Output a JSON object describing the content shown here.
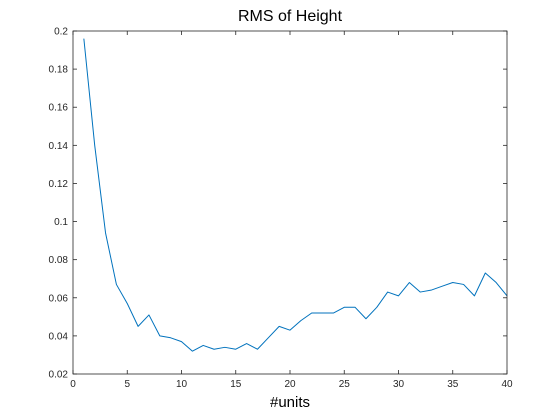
{
  "chart_data": {
    "type": "line",
    "title": "RMS of Height",
    "xlabel": "#units",
    "ylabel": "",
    "xlim": [
      0,
      40
    ],
    "ylim": [
      0.02,
      0.2
    ],
    "xticks": [
      0,
      5,
      10,
      15,
      20,
      25,
      30,
      35,
      40
    ],
    "xtick_labels": [
      "0",
      "5",
      "10",
      "15",
      "20",
      "25",
      "30",
      "35",
      "40"
    ],
    "yticks": [
      0.02,
      0.04,
      0.06,
      0.08,
      0.1,
      0.12,
      0.14,
      0.16,
      0.18,
      0.2
    ],
    "ytick_labels": [
      "0.02",
      "0.04",
      "0.06",
      "0.08",
      "0.1",
      "0.12",
      "0.14",
      "0.16",
      "0.18",
      "0.2"
    ],
    "grid": false,
    "line_color": "#0072bd",
    "series": [
      {
        "x": [
          1,
          2,
          3,
          4,
          5,
          6,
          7,
          8,
          9,
          10,
          11,
          12,
          13,
          14,
          15,
          16,
          17,
          18,
          19,
          20,
          21,
          22,
          23,
          24,
          25,
          26,
          27,
          28,
          29,
          30,
          31,
          32,
          33,
          34,
          35,
          36,
          37,
          38,
          39,
          40
        ],
        "values": [
          0.196,
          0.14,
          0.094,
          0.067,
          0.057,
          0.045,
          0.051,
          0.04,
          0.039,
          0.037,
          0.032,
          0.035,
          0.033,
          0.034,
          0.033,
          0.036,
          0.033,
          0.039,
          0.045,
          0.043,
          0.048,
          0.052,
          0.052,
          0.052,
          0.055,
          0.055,
          0.049,
          0.055,
          0.063,
          0.061,
          0.068,
          0.063,
          0.064,
          0.066,
          0.068,
          0.067,
          0.061,
          0.073,
          0.068,
          0.061
        ]
      }
    ]
  }
}
